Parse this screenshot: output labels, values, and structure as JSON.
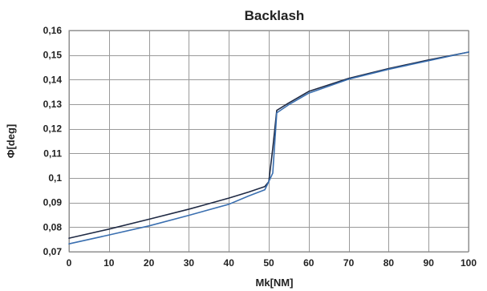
{
  "chart_data": {
    "type": "line",
    "title": "Backlash",
    "xlabel": "Mk[NM]",
    "ylabel": "Φ[deg]",
    "xlim": [
      0,
      100
    ],
    "ylim": [
      0.07,
      0.16
    ],
    "grid": true,
    "x_ticks": [
      {
        "value": 0,
        "label": "0"
      },
      {
        "value": 10,
        "label": "10"
      },
      {
        "value": 20,
        "label": "20"
      },
      {
        "value": 30,
        "label": "30"
      },
      {
        "value": 40,
        "label": "40"
      },
      {
        "value": 50,
        "label": "50"
      },
      {
        "value": 60,
        "label": "60"
      },
      {
        "value": 70,
        "label": "70"
      },
      {
        "value": 80,
        "label": "80"
      },
      {
        "value": 90,
        "label": "90"
      },
      {
        "value": 100,
        "label": "100"
      }
    ],
    "y_ticks": [
      {
        "value": 0.07,
        "label": "0,07"
      },
      {
        "value": 0.08,
        "label": "0,08"
      },
      {
        "value": 0.09,
        "label": "0,09"
      },
      {
        "value": 0.1,
        "label": "0,1"
      },
      {
        "value": 0.11,
        "label": "0,11"
      },
      {
        "value": 0.12,
        "label": "0,12"
      },
      {
        "value": 0.13,
        "label": "0,13"
      },
      {
        "value": 0.14,
        "label": "0,14"
      },
      {
        "value": 0.15,
        "label": "0,15"
      },
      {
        "value": 0.16,
        "label": "0,16"
      }
    ],
    "series": [
      {
        "color": "#1f2a44",
        "x": [
          0,
          10,
          20,
          30,
          40,
          45,
          49,
          50,
          51,
          52,
          55,
          60,
          70,
          80,
          90,
          100
        ],
        "y": [
          0.0755,
          0.0792,
          0.0832,
          0.0873,
          0.0918,
          0.0943,
          0.0965,
          0.0985,
          0.112,
          0.1275,
          0.1305,
          0.1352,
          0.1405,
          0.1445,
          0.148,
          0.1512
        ]
      },
      {
        "color": "#3a6fb0",
        "x": [
          0,
          10,
          20,
          30,
          40,
          45,
          49,
          50,
          51,
          52,
          55,
          60,
          70,
          80,
          90,
          100
        ],
        "y": [
          0.0732,
          0.0768,
          0.0805,
          0.0848,
          0.0893,
          0.0927,
          0.0952,
          0.0985,
          0.102,
          0.1265,
          0.1298,
          0.1345,
          0.1402,
          0.1442,
          0.1477,
          0.1512
        ]
      }
    ]
  }
}
